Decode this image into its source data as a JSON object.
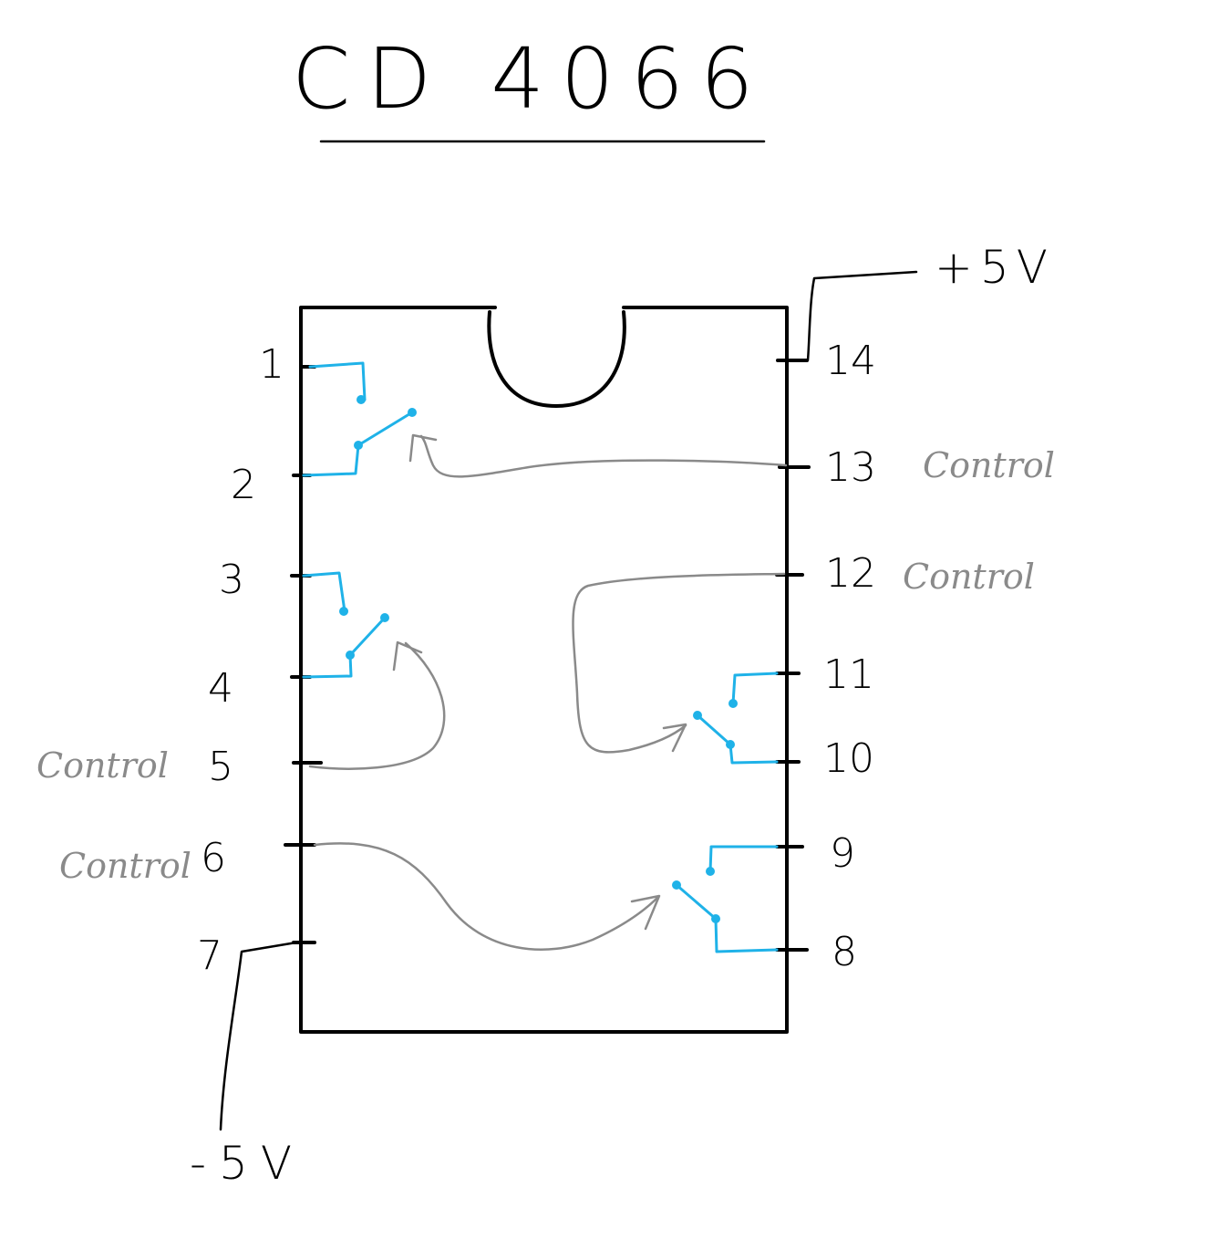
{
  "title": "CD 4066",
  "supply": {
    "positive": "+5V",
    "negative": "-5V"
  },
  "control_label": "Control",
  "pins": [
    {
      "num": "1",
      "label": ""
    },
    {
      "num": "2",
      "label": ""
    },
    {
      "num": "3",
      "label": ""
    },
    {
      "num": "4",
      "label": ""
    },
    {
      "num": "5",
      "label": "Control"
    },
    {
      "num": "6",
      "label": "Control"
    },
    {
      "num": "7",
      "label": ""
    },
    {
      "num": "8",
      "label": ""
    },
    {
      "num": "9",
      "label": ""
    },
    {
      "num": "10",
      "label": ""
    },
    {
      "num": "11",
      "label": ""
    },
    {
      "num": "12",
      "label": "Control"
    },
    {
      "num": "13",
      "label": "Control"
    },
    {
      "num": "14",
      "label": ""
    }
  ],
  "colors": {
    "switch": "#1fb2e8",
    "control_wire": "#8a8a8a",
    "ink": "#000000"
  }
}
